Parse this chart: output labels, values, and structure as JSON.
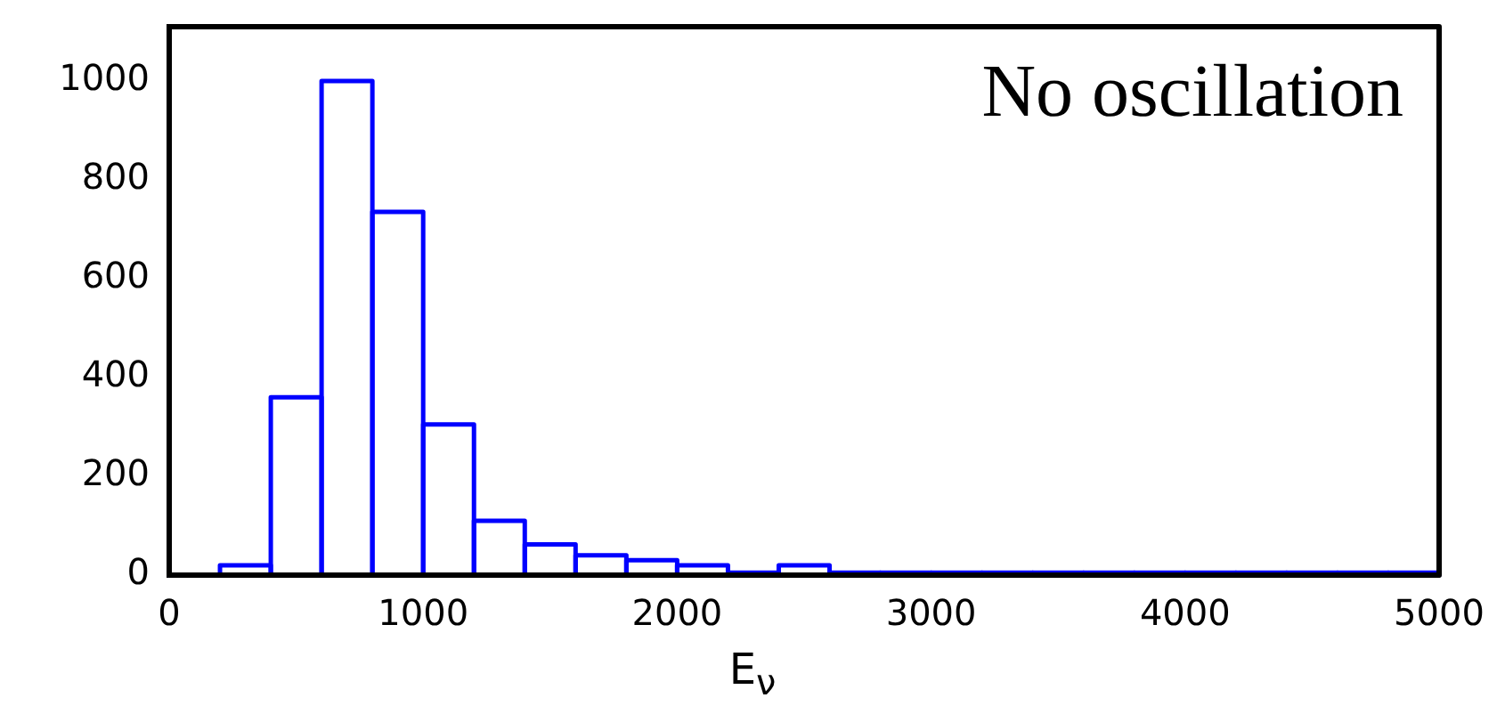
{
  "chart_data": {
    "type": "histogram",
    "xlabel": "E$_{ν}$",
    "annotations": [
      "No oscillation"
    ],
    "bins": [
      0,
      200,
      400,
      600,
      800,
      1000,
      1200,
      1400,
      1600,
      1800,
      2000,
      2200,
      2400,
      2600,
      2800,
      3000,
      3200,
      3400,
      3600,
      3800,
      4000,
      4200,
      4400,
      4600,
      4800,
      5000
    ],
    "values": [
      0,
      20,
      360,
      1000,
      735,
      305,
      110,
      62,
      40,
      30,
      20,
      5,
      20,
      5,
      5,
      5,
      5,
      5,
      5,
      5,
      5,
      5,
      5,
      5,
      5
    ],
    "color": "#0000ff",
    "xlim": [
      0,
      5000
    ],
    "xticks": [
      0,
      1000,
      2000,
      3000,
      4000,
      5000
    ],
    "ylim": [
      0,
      1110
    ],
    "yticks": [
      0,
      200,
      400,
      600,
      800,
      1000
    ],
    "grid": false,
    "legend": false
  }
}
